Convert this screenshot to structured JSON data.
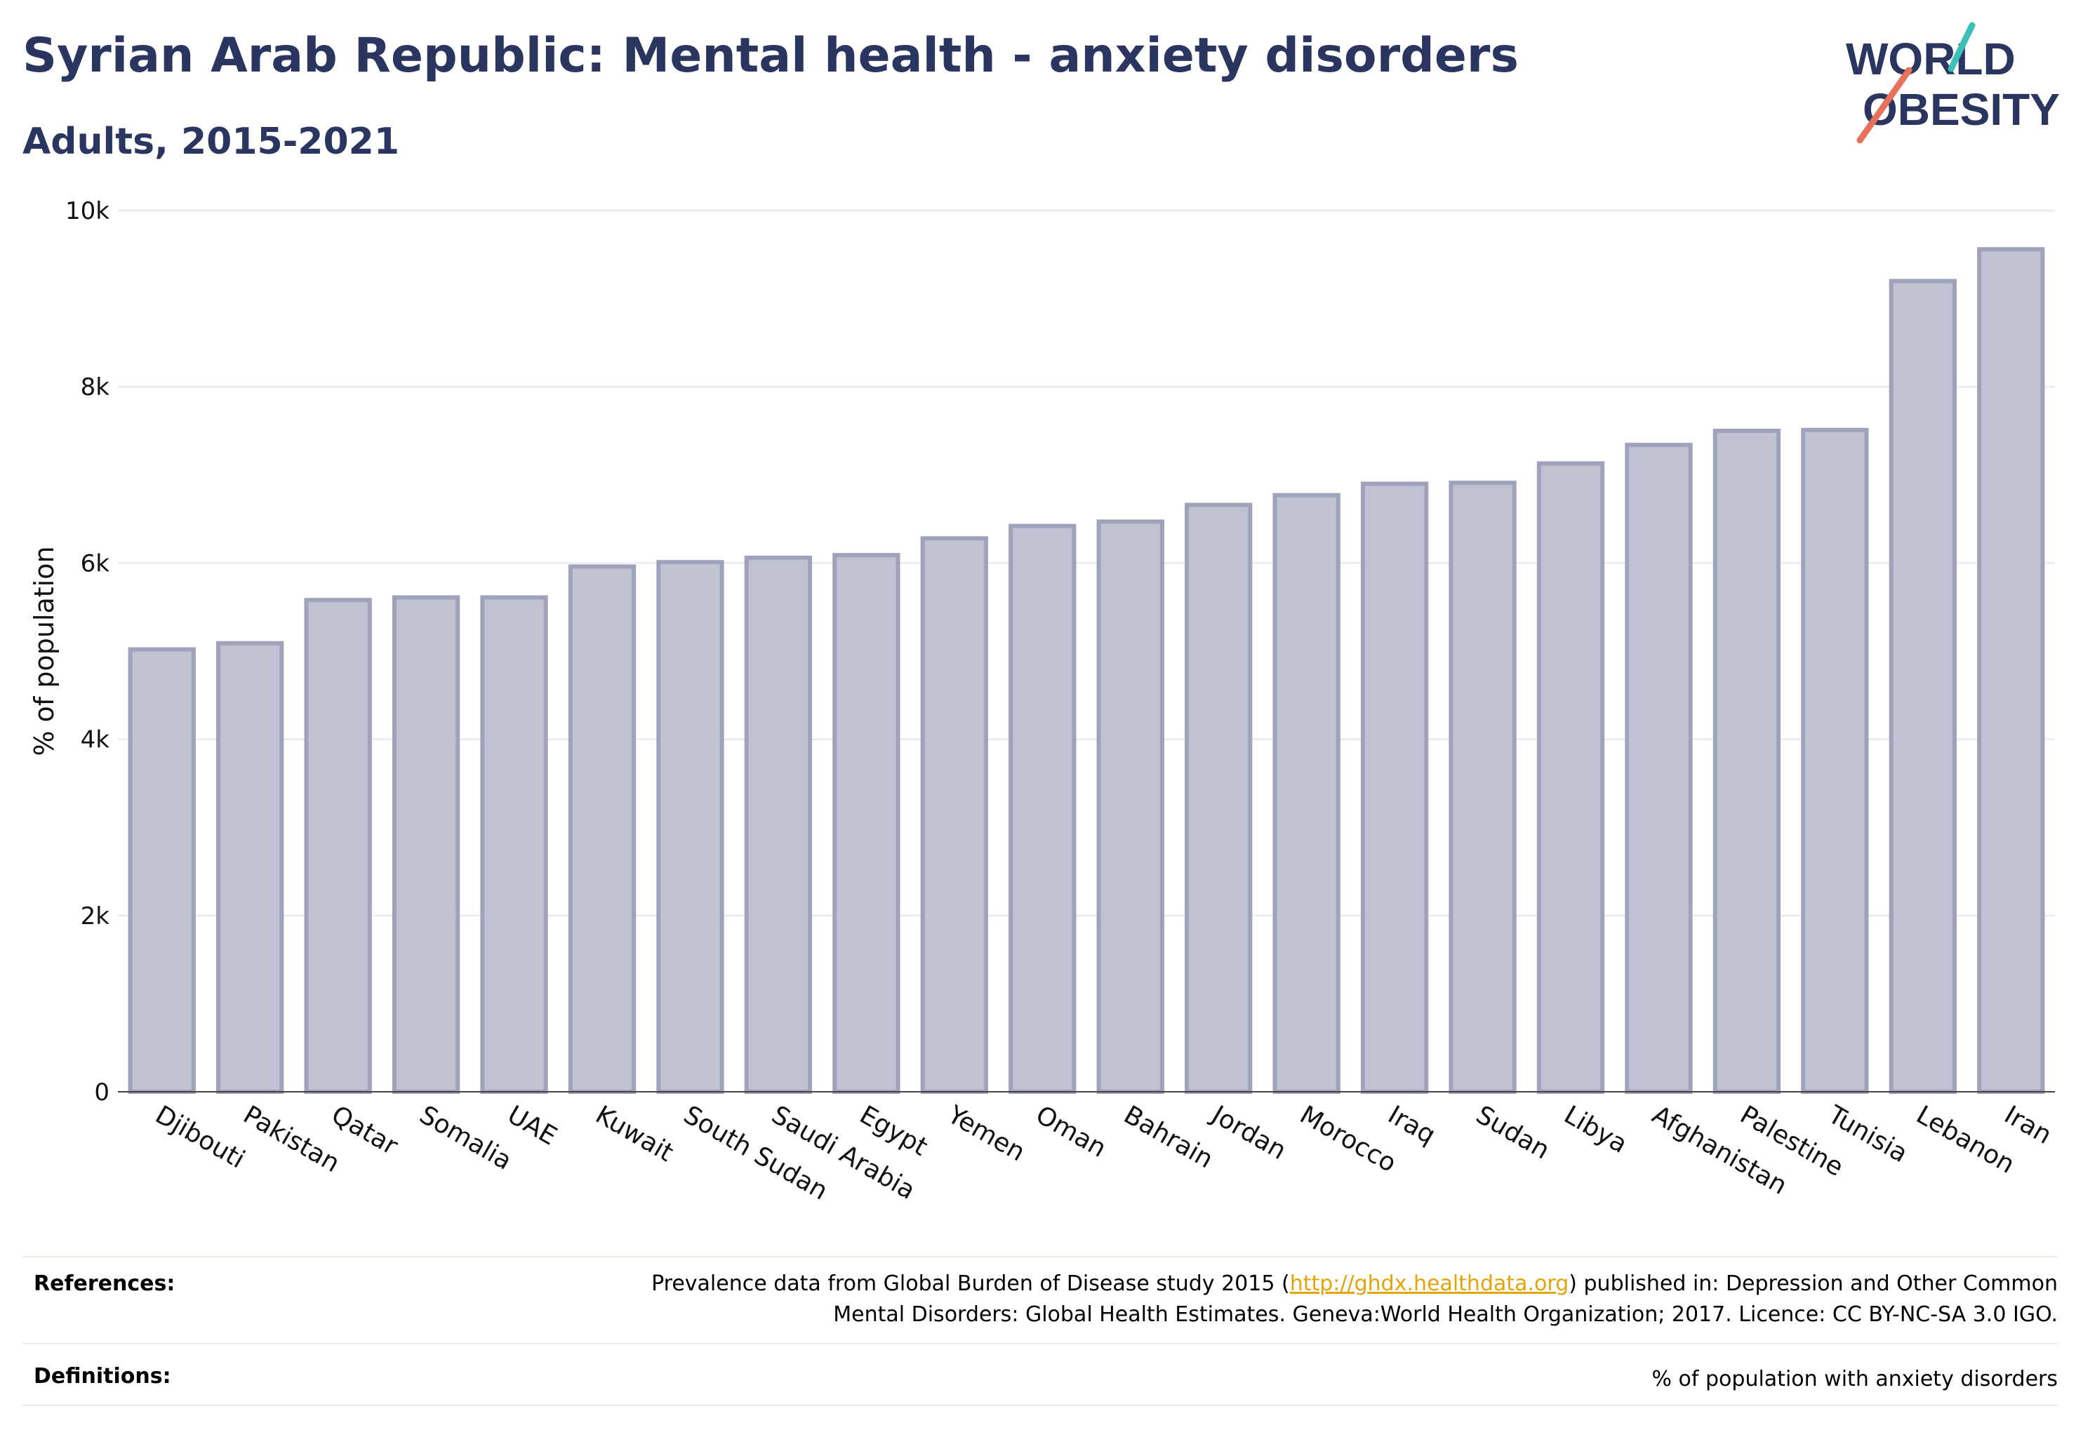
{
  "header": {
    "title": "Syrian Arab Republic: Mental health - anxiety disorders",
    "subtitle": "Adults, 2015-2021"
  },
  "logo": {
    "line1": "WORLD",
    "line2": "OBESITY",
    "color": "#2b3660",
    "accent_teal": "#3bbfb8",
    "accent_coral": "#e8715a"
  },
  "chart_data": {
    "type": "bar",
    "categories": [
      "Djibouti",
      "Pakistan",
      "Qatar",
      "Somalia",
      "UAE",
      "Kuwait",
      "South Sudan",
      "Saudi Arabia",
      "Egypt",
      "Yemen",
      "Oman",
      "Bahrain",
      "Jordan",
      "Morocco",
      "Iraq",
      "Sudan",
      "Libya",
      "Afghanistan",
      "Palestine",
      "Tunisia",
      "Lebanon",
      "Iran"
    ],
    "values": [
      5020,
      5090,
      5580,
      5610,
      5610,
      5960,
      6010,
      6060,
      6090,
      6280,
      6420,
      6470,
      6660,
      6770,
      6900,
      6910,
      7130,
      7340,
      7500,
      7510,
      9200,
      9560
    ],
    "xlabel": "",
    "ylabel": "% of population",
    "ylim": [
      0,
      10000
    ],
    "yticks": [
      0,
      2000,
      4000,
      6000,
      8000,
      10000
    ],
    "ytick_labels": [
      "0",
      "2k",
      "4k",
      "6k",
      "8k",
      "10k"
    ],
    "grid": true,
    "bar_fill": "#bfc2d0",
    "bar_stroke": "#9ea3bb"
  },
  "references": {
    "label": "References:",
    "line1_pre": "Prevalence data from Global Burden of Disease study 2015 (",
    "link": "http://ghdx.healthdata.org",
    "line1_post": ") published in: Depression and Other Common",
    "line2": "Mental Disorders: Global Health Estimates. Geneva:World Health Organization; 2017. Licence: CC BY-NC-SA 3.0 IGO."
  },
  "definitions": {
    "label": "Definitions:",
    "text": "% of population with anxiety disorders"
  }
}
